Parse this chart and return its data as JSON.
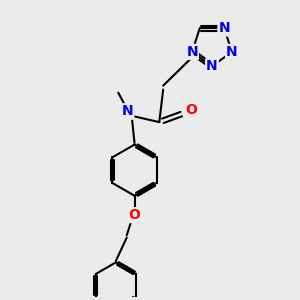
{
  "background_color": "#ebebeb",
  "bond_color": "#000000",
  "bond_width": 1.5,
  "atom_colors": {
    "N": "#0000ee",
    "O": "#ff0000",
    "C": "#000000"
  },
  "font_size": 10,
  "fig_width": 3.0,
  "fig_height": 3.0,
  "xlim": [
    -0.5,
    3.0
  ],
  "ylim": [
    -0.3,
    3.5
  ]
}
